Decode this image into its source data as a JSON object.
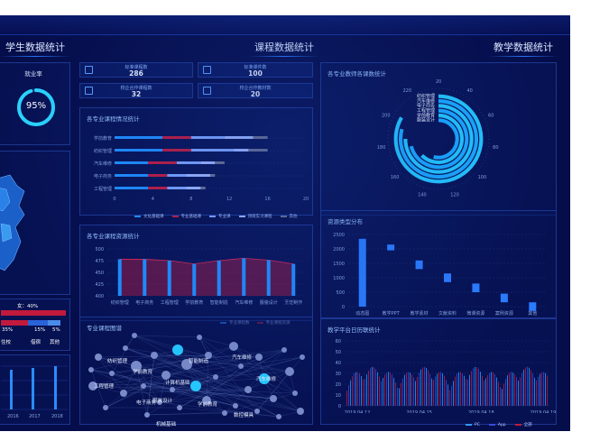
{
  "sections": {
    "student": "学生数据统计",
    "course": "课程数据统计",
    "teaching": "教学数据统计"
  },
  "employment": {
    "label": "就业率",
    "value": "95%",
    "fraction": 0.95
  },
  "pct_labels": {
    "women": "女：40%",
    "p1": "35%",
    "p2": "15%",
    "p3": "5%"
  },
  "job_labels": {
    "a": "住校",
    "b": "借宿",
    "c": "其他"
  },
  "years": [
    "2016",
    "2017",
    "2018"
  ],
  "stats": [
    {
      "label": "标准课程数",
      "value": "286"
    },
    {
      "label": "标准课件数",
      "value": "100"
    },
    {
      "label": "校企合作课程数",
      "value": "32"
    },
    {
      "label": "校企合作教材数",
      "value": "20"
    }
  ],
  "colors": {
    "accent": "#1f8fff",
    "red": "#c21a3c",
    "cyan": "#22c8ff"
  },
  "icons": [
    "monitor-icon",
    "book-icon",
    "monitor-icon",
    "book-icon"
  ],
  "chart_data": [
    {
      "type": "bar",
      "title": "各专业课程情况统计",
      "categories": [
        "学前教育",
        "纺织管理",
        "汽车维修",
        "电子商务",
        "工程管理"
      ],
      "series": [
        {
          "name": "文化基础课",
          "values": [
            5,
            5,
            3.5,
            3.5,
            3.5
          ]
        },
        {
          "name": "专业基础课",
          "values": [
            3,
            3,
            3,
            2,
            2
          ]
        },
        {
          "name": "专业课",
          "values": [
            3.5,
            4.5,
            2.5,
            2,
            2
          ]
        },
        {
          "name": "顶岗实习课程",
          "values": [
            3,
            1.5,
            1.5,
            2.5,
            1.5
          ]
        },
        {
          "name": "其他",
          "values": [
            1.5,
            2,
            1,
            0.5,
            0.5
          ]
        }
      ],
      "xticks": [
        "0",
        "4",
        "8",
        "12",
        "16",
        "20"
      ],
      "xlim": [
        0,
        20
      ]
    },
    {
      "type": "bar",
      "title": "各专业课程资源统计",
      "categories": [
        "纺织管理",
        "电子商务",
        "工程管理",
        "学前教育",
        "智能制造",
        "汽车维修",
        "服装设计",
        "烹饪制作"
      ],
      "series": [
        {
          "name": "专业课程数",
          "values": [
            478,
            478,
            475,
            468,
            475,
            480,
            476,
            468
          ]
        },
        {
          "name": "专业课程资源",
          "values": [
            478,
            478,
            475,
            468,
            475,
            480,
            476,
            468
          ]
        }
      ],
      "yticks": [
        "400",
        "425",
        "450",
        "475",
        "500"
      ],
      "ylim": [
        400,
        500
      ]
    },
    {
      "type": "bar",
      "title": "各专业教师各课数统计",
      "categories": [
        "纺织管理",
        "汽车维修",
        "电子商务",
        "工程管理",
        "学前教育",
        "服装设计"
      ],
      "values": [
        200,
        190,
        180,
        170,
        150,
        130
      ],
      "ticks": [
        "20",
        "40",
        "60",
        "80",
        "100",
        "120",
        "140",
        "160",
        "180",
        "200",
        "220"
      ]
    },
    {
      "type": "bar",
      "title": "资源类型分布",
      "categories": [
        "动态图",
        "教学PPT",
        "教学素材",
        "文献资料",
        "微课资源",
        "案例资源",
        "其他"
      ],
      "values": [
        2350,
        2150,
        1600,
        1150,
        800,
        450,
        150
      ],
      "yticks": [
        "0",
        "500",
        "1000",
        "1500",
        "2000",
        "2500"
      ],
      "ylim": [
        0,
        2500
      ]
    },
    {
      "type": "bar",
      "title": "教学平台日历联统计",
      "series": [
        {
          "name": "PC",
          "values": []
        },
        {
          "name": "App",
          "values": []
        },
        {
          "name": "全部",
          "values": []
        }
      ],
      "xticks": [
        "2019.04.12",
        "2019.04.15",
        "2019.04.18",
        "2019.04.19"
      ],
      "yticks": [
        "0",
        "10",
        "20",
        "30",
        "40",
        "50",
        "60"
      ],
      "ylim": [
        0,
        60
      ]
    }
  ],
  "graph": {
    "title": "专业课程图谱",
    "labels": [
      "纺织管理",
      "智能制造",
      "汽车维修",
      "学前教育",
      "计算机基础",
      "工程管理",
      "汽车维修",
      "服装设计",
      "电子商务",
      "学前教育",
      "数控模具",
      "机械基础"
    ]
  }
}
